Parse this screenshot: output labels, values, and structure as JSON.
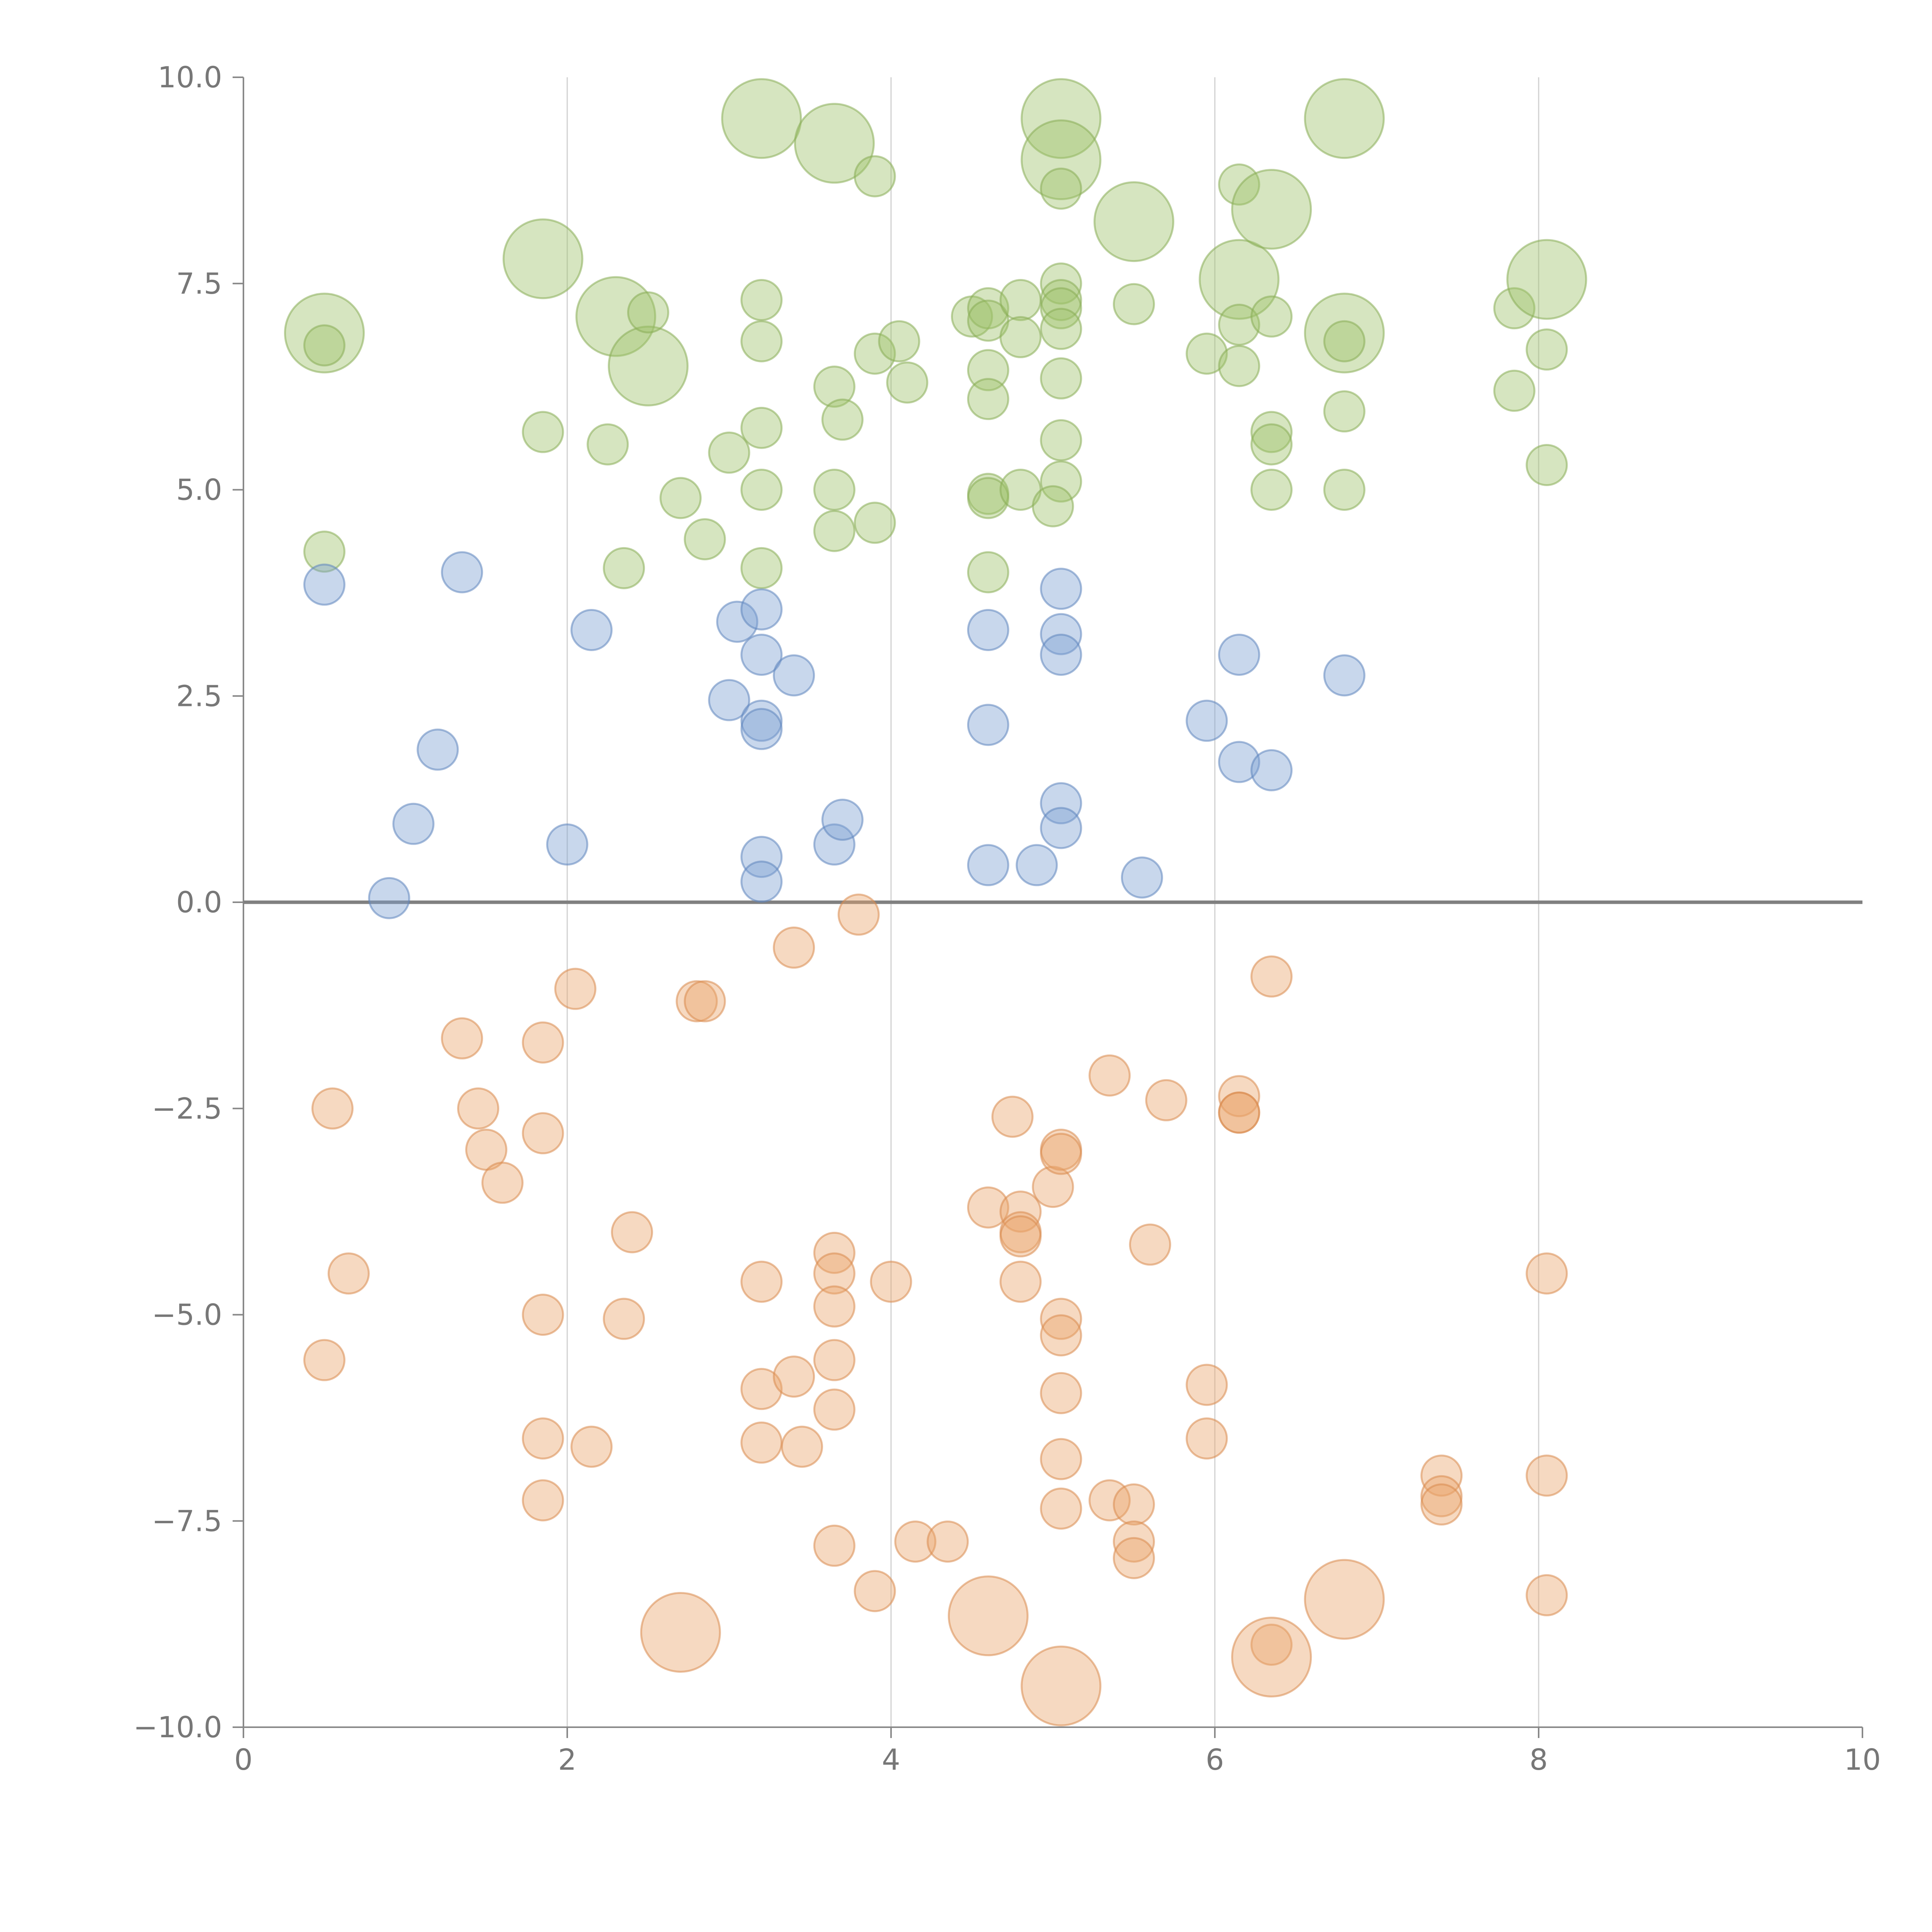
{
  "chart_data": {
    "type": "scatter",
    "title": "",
    "xlabel": "",
    "ylabel": "",
    "xlim": [
      0,
      10
    ],
    "ylim": [
      -10,
      10
    ],
    "x_ticks": [
      0,
      2,
      4,
      6,
      8,
      10
    ],
    "y_ticks": [
      -10,
      -7.5,
      -5,
      -2.5,
      0,
      2.5,
      5,
      7.5,
      10
    ],
    "x_tick_labels": [
      "0",
      "2",
      "4",
      "6",
      "8",
      "10"
    ],
    "y_tick_labels": [
      "−10.0",
      "−7.5",
      "−5.0",
      "−2.5",
      "0.0",
      "2.5",
      "5.0",
      "7.5",
      "10.0"
    ],
    "x_gridlines": true,
    "y_gridlines": false,
    "zero_line": true,
    "legend": "none",
    "series": [
      {
        "color": "#9dc168",
        "stroke": "#88ad55",
        "points": [
          {
            "x": 0.5,
            "y": 6.9,
            "size": "large"
          },
          {
            "x": 0.5,
            "y": 6.75,
            "size": "small"
          },
          {
            "x": 0.5,
            "y": 4.25,
            "size": "small"
          },
          {
            "x": 1.85,
            "y": 7.8,
            "size": "large"
          },
          {
            "x": 1.85,
            "y": 5.7,
            "size": "small"
          },
          {
            "x": 2.25,
            "y": 5.55,
            "size": "small"
          },
          {
            "x": 2.3,
            "y": 7.1,
            "size": "large"
          },
          {
            "x": 2.35,
            "y": 4.05,
            "size": "small"
          },
          {
            "x": 2.5,
            "y": 6.5,
            "size": "large"
          },
          {
            "x": 2.5,
            "y": 7.15,
            "size": "small"
          },
          {
            "x": 2.7,
            "y": 4.9,
            "size": "small"
          },
          {
            "x": 2.85,
            "y": 4.4,
            "size": "small"
          },
          {
            "x": 3.0,
            "y": 5.45,
            "size": "small"
          },
          {
            "x": 3.2,
            "y": 9.5,
            "size": "large"
          },
          {
            "x": 3.2,
            "y": 7.3,
            "size": "small"
          },
          {
            "x": 3.2,
            "y": 6.8,
            "size": "small"
          },
          {
            "x": 3.2,
            "y": 5.75,
            "size": "small"
          },
          {
            "x": 3.2,
            "y": 5.0,
            "size": "small"
          },
          {
            "x": 3.2,
            "y": 4.05,
            "size": "small"
          },
          {
            "x": 3.65,
            "y": 9.2,
            "size": "large"
          },
          {
            "x": 3.65,
            "y": 6.25,
            "size": "small"
          },
          {
            "x": 3.65,
            "y": 5.0,
            "size": "small"
          },
          {
            "x": 3.65,
            "y": 4.5,
            "size": "small"
          },
          {
            "x": 3.7,
            "y": 5.85,
            "size": "small"
          },
          {
            "x": 3.9,
            "y": 8.8,
            "size": "small"
          },
          {
            "x": 3.9,
            "y": 6.65,
            "size": "small"
          },
          {
            "x": 3.9,
            "y": 4.6,
            "size": "small"
          },
          {
            "x": 4.05,
            "y": 6.8,
            "size": "small"
          },
          {
            "x": 4.1,
            "y": 6.3,
            "size": "small"
          },
          {
            "x": 4.5,
            "y": 7.1,
            "size": "small"
          },
          {
            "x": 4.6,
            "y": 7.2,
            "size": "small"
          },
          {
            "x": 4.6,
            "y": 7.05,
            "size": "small"
          },
          {
            "x": 4.6,
            "y": 6.45,
            "size": "small"
          },
          {
            "x": 4.6,
            "y": 6.1,
            "size": "small"
          },
          {
            "x": 4.6,
            "y": 4.95,
            "size": "small"
          },
          {
            "x": 4.6,
            "y": 4.9,
            "size": "small"
          },
          {
            "x": 4.6,
            "y": 4.0,
            "size": "small"
          },
          {
            "x": 4.8,
            "y": 7.3,
            "size": "small"
          },
          {
            "x": 4.8,
            "y": 6.85,
            "size": "small"
          },
          {
            "x": 4.8,
            "y": 5.0,
            "size": "small"
          },
          {
            "x": 5.05,
            "y": 9.5,
            "size": "large"
          },
          {
            "x": 5.05,
            "y": 9.0,
            "size": "large"
          },
          {
            "x": 5.05,
            "y": 8.65,
            "size": "small"
          },
          {
            "x": 5.05,
            "y": 7.5,
            "size": "small"
          },
          {
            "x": 5.05,
            "y": 7.3,
            "size": "small"
          },
          {
            "x": 5.05,
            "y": 7.2,
            "size": "small"
          },
          {
            "x": 5.05,
            "y": 6.95,
            "size": "small"
          },
          {
            "x": 5.05,
            "y": 6.35,
            "size": "small"
          },
          {
            "x": 5.05,
            "y": 5.6,
            "size": "small"
          },
          {
            "x": 5.05,
            "y": 5.1,
            "size": "small"
          },
          {
            "x": 5.0,
            "y": 4.8,
            "size": "small"
          },
          {
            "x": 5.5,
            "y": 8.25,
            "size": "large"
          },
          {
            "x": 5.5,
            "y": 7.25,
            "size": "small"
          },
          {
            "x": 5.95,
            "y": 6.65,
            "size": "small"
          },
          {
            "x": 6.15,
            "y": 8.7,
            "size": "small"
          },
          {
            "x": 6.15,
            "y": 7.55,
            "size": "large"
          },
          {
            "x": 6.15,
            "y": 7.0,
            "size": "small"
          },
          {
            "x": 6.15,
            "y": 6.5,
            "size": "small"
          },
          {
            "x": 6.35,
            "y": 8.4,
            "size": "large"
          },
          {
            "x": 6.35,
            "y": 7.1,
            "size": "small"
          },
          {
            "x": 6.35,
            "y": 5.7,
            "size": "small"
          },
          {
            "x": 6.35,
            "y": 5.55,
            "size": "small"
          },
          {
            "x": 6.35,
            "y": 5.0,
            "size": "small"
          },
          {
            "x": 6.8,
            "y": 9.5,
            "size": "large"
          },
          {
            "x": 6.8,
            "y": 6.9,
            "size": "large"
          },
          {
            "x": 6.8,
            "y": 6.8,
            "size": "small"
          },
          {
            "x": 6.8,
            "y": 5.95,
            "size": "small"
          },
          {
            "x": 6.8,
            "y": 5.0,
            "size": "small"
          },
          {
            "x": 7.85,
            "y": 7.2,
            "size": "small"
          },
          {
            "x": 7.85,
            "y": 6.2,
            "size": "small"
          },
          {
            "x": 8.05,
            "y": 7.55,
            "size": "large"
          },
          {
            "x": 8.05,
            "y": 6.7,
            "size": "small"
          },
          {
            "x": 8.05,
            "y": 5.3,
            "size": "small"
          }
        ]
      },
      {
        "color": "#7b9fd1",
        "stroke": "#5f85bd",
        "points": [
          {
            "x": 0.5,
            "y": 3.85,
            "size": "small"
          },
          {
            "x": 0.9,
            "y": 0.05,
            "size": "small"
          },
          {
            "x": 1.05,
            "y": 0.95,
            "size": "small"
          },
          {
            "x": 1.2,
            "y": 1.85,
            "size": "small"
          },
          {
            "x": 1.35,
            "y": 4.0,
            "size": "small"
          },
          {
            "x": 2.0,
            "y": 0.7,
            "size": "small"
          },
          {
            "x": 2.15,
            "y": 3.3,
            "size": "small"
          },
          {
            "x": 3.0,
            "y": 2.45,
            "size": "small"
          },
          {
            "x": 3.05,
            "y": 3.4,
            "size": "small"
          },
          {
            "x": 3.2,
            "y": 3.55,
            "size": "small"
          },
          {
            "x": 3.2,
            "y": 3.0,
            "size": "small"
          },
          {
            "x": 3.2,
            "y": 2.2,
            "size": "small"
          },
          {
            "x": 3.2,
            "y": 2.1,
            "size": "small"
          },
          {
            "x": 3.2,
            "y": 0.55,
            "size": "small"
          },
          {
            "x": 3.2,
            "y": 0.25,
            "size": "small"
          },
          {
            "x": 3.4,
            "y": 2.75,
            "size": "small"
          },
          {
            "x": 3.65,
            "y": 0.7,
            "size": "small"
          },
          {
            "x": 3.7,
            "y": 1.0,
            "size": "small"
          },
          {
            "x": 4.6,
            "y": 3.3,
            "size": "small"
          },
          {
            "x": 4.6,
            "y": 2.15,
            "size": "small"
          },
          {
            "x": 4.6,
            "y": 0.45,
            "size": "small"
          },
          {
            "x": 4.9,
            "y": 0.45,
            "size": "small"
          },
          {
            "x": 5.05,
            "y": 3.8,
            "size": "small"
          },
          {
            "x": 5.05,
            "y": 3.25,
            "size": "small"
          },
          {
            "x": 5.05,
            "y": 3.0,
            "size": "small"
          },
          {
            "x": 5.05,
            "y": 1.2,
            "size": "small"
          },
          {
            "x": 5.05,
            "y": 0.9,
            "size": "small"
          },
          {
            "x": 5.55,
            "y": 0.3,
            "size": "small"
          },
          {
            "x": 5.95,
            "y": 2.2,
            "size": "small"
          },
          {
            "x": 6.15,
            "y": 3.0,
            "size": "small"
          },
          {
            "x": 6.15,
            "y": 1.7,
            "size": "small"
          },
          {
            "x": 6.35,
            "y": 1.6,
            "size": "small"
          },
          {
            "x": 6.8,
            "y": 2.75,
            "size": "small"
          }
        ]
      },
      {
        "color": "#eaa56c",
        "stroke": "#d98b4f",
        "points": [
          {
            "x": 0.55,
            "y": -2.5,
            "size": "small"
          },
          {
            "x": 0.65,
            "y": -4.5,
            "size": "small"
          },
          {
            "x": 0.5,
            "y": -5.55,
            "size": "small"
          },
          {
            "x": 1.35,
            "y": -1.65,
            "size": "small"
          },
          {
            "x": 1.45,
            "y": -2.5,
            "size": "small"
          },
          {
            "x": 1.5,
            "y": -3.0,
            "size": "small"
          },
          {
            "x": 1.6,
            "y": -3.4,
            "size": "small"
          },
          {
            "x": 1.85,
            "y": -1.7,
            "size": "small"
          },
          {
            "x": 1.85,
            "y": -2.8,
            "size": "small"
          },
          {
            "x": 1.85,
            "y": -5.0,
            "size": "small"
          },
          {
            "x": 1.85,
            "y": -6.5,
            "size": "small"
          },
          {
            "x": 1.85,
            "y": -7.25,
            "size": "small"
          },
          {
            "x": 2.05,
            "y": -1.05,
            "size": "small"
          },
          {
            "x": 2.15,
            "y": -6.6,
            "size": "small"
          },
          {
            "x": 2.35,
            "y": -5.05,
            "size": "small"
          },
          {
            "x": 2.4,
            "y": -4.0,
            "size": "small"
          },
          {
            "x": 2.7,
            "y": -8.85,
            "size": "large"
          },
          {
            "x": 2.8,
            "y": -1.2,
            "size": "small"
          },
          {
            "x": 2.85,
            "y": -1.2,
            "size": "small"
          },
          {
            "x": 3.2,
            "y": -4.6,
            "size": "small"
          },
          {
            "x": 3.2,
            "y": -5.9,
            "size": "small"
          },
          {
            "x": 3.2,
            "y": -6.55,
            "size": "small"
          },
          {
            "x": 3.4,
            "y": -5.75,
            "size": "small"
          },
          {
            "x": 3.4,
            "y": -0.55,
            "size": "small"
          },
          {
            "x": 3.45,
            "y": -6.6,
            "size": "small"
          },
          {
            "x": 3.65,
            "y": -4.25,
            "size": "small"
          },
          {
            "x": 3.65,
            "y": -4.5,
            "size": "small"
          },
          {
            "x": 3.65,
            "y": -4.9,
            "size": "small"
          },
          {
            "x": 3.65,
            "y": -5.55,
            "size": "small"
          },
          {
            "x": 3.65,
            "y": -6.15,
            "size": "small"
          },
          {
            "x": 3.65,
            "y": -7.8,
            "size": "small"
          },
          {
            "x": 3.8,
            "y": -0.15,
            "size": "small"
          },
          {
            "x": 3.9,
            "y": -8.35,
            "size": "small"
          },
          {
            "x": 4.0,
            "y": -4.6,
            "size": "small"
          },
          {
            "x": 4.15,
            "y": -7.75,
            "size": "small"
          },
          {
            "x": 4.35,
            "y": -7.75,
            "size": "small"
          },
          {
            "x": 4.6,
            "y": -3.7,
            "size": "small"
          },
          {
            "x": 4.6,
            "y": -8.65,
            "size": "large"
          },
          {
            "x": 4.75,
            "y": -2.6,
            "size": "small"
          },
          {
            "x": 4.8,
            "y": -3.75,
            "size": "small"
          },
          {
            "x": 4.8,
            "y": -4.0,
            "size": "small"
          },
          {
            "x": 4.8,
            "y": -4.05,
            "size": "small"
          },
          {
            "x": 4.8,
            "y": -4.6,
            "size": "small"
          },
          {
            "x": 5.0,
            "y": -3.45,
            "size": "small"
          },
          {
            "x": 5.05,
            "y": -3.0,
            "size": "small"
          },
          {
            "x": 5.05,
            "y": -3.05,
            "size": "small"
          },
          {
            "x": 5.05,
            "y": -5.05,
            "size": "small"
          },
          {
            "x": 5.05,
            "y": -5.25,
            "size": "small"
          },
          {
            "x": 5.05,
            "y": -5.95,
            "size": "small"
          },
          {
            "x": 5.05,
            "y": -6.75,
            "size": "small"
          },
          {
            "x": 5.05,
            "y": -7.35,
            "size": "small"
          },
          {
            "x": 5.05,
            "y": -9.5,
            "size": "large"
          },
          {
            "x": 5.35,
            "y": -2.1,
            "size": "small"
          },
          {
            "x": 5.35,
            "y": -7.25,
            "size": "small"
          },
          {
            "x": 5.5,
            "y": -7.3,
            "size": "small"
          },
          {
            "x": 5.5,
            "y": -7.75,
            "size": "small"
          },
          {
            "x": 5.5,
            "y": -7.95,
            "size": "small"
          },
          {
            "x": 5.6,
            "y": -4.15,
            "size": "small"
          },
          {
            "x": 5.7,
            "y": -2.4,
            "size": "small"
          },
          {
            "x": 5.95,
            "y": -5.85,
            "size": "small"
          },
          {
            "x": 5.95,
            "y": -6.5,
            "size": "small"
          },
          {
            "x": 6.15,
            "y": -2.35,
            "size": "small"
          },
          {
            "x": 6.15,
            "y": -2.55,
            "size": "small"
          },
          {
            "x": 6.15,
            "y": -2.55,
            "size": "small"
          },
          {
            "x": 6.35,
            "y": -0.9,
            "size": "small"
          },
          {
            "x": 6.35,
            "y": -9.0,
            "size": "small"
          },
          {
            "x": 6.35,
            "y": -9.15,
            "size": "large"
          },
          {
            "x": 6.8,
            "y": -8.45,
            "size": "large"
          },
          {
            "x": 7.4,
            "y": -6.95,
            "size": "small"
          },
          {
            "x": 7.4,
            "y": -7.2,
            "size": "small"
          },
          {
            "x": 7.4,
            "y": -7.3,
            "size": "small"
          },
          {
            "x": 8.05,
            "y": -4.5,
            "size": "small"
          },
          {
            "x": 8.05,
            "y": -6.95,
            "size": "small"
          },
          {
            "x": 8.05,
            "y": -8.4,
            "size": "small"
          }
        ]
      }
    ]
  }
}
